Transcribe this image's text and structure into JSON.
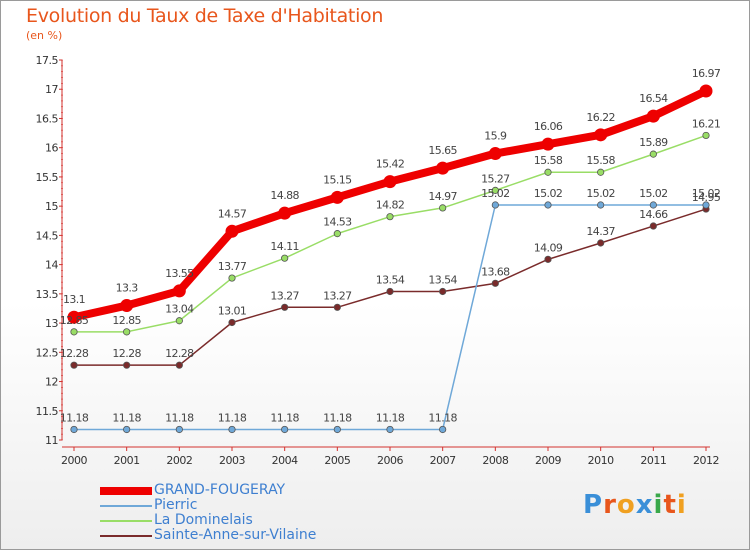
{
  "title": "Evolution du Taux de Taxe d'Habitation",
  "subtitle": "(en %)",
  "logo_text": "Proxiti",
  "chart_data": {
    "type": "line",
    "title": "Evolution du Taux de Taxe d'Habitation",
    "ylabel": "(en %)",
    "xlabel": "",
    "x": [
      "2000",
      "2001",
      "2002",
      "2003",
      "2004",
      "2005",
      "2006",
      "2007",
      "2008",
      "2009",
      "2010",
      "2011",
      "2012"
    ],
    "ylim": [
      11,
      17.5
    ],
    "yticks": [
      "11",
      "11.5",
      "12",
      "12.5",
      "13",
      "13.5",
      "14",
      "14.5",
      "15",
      "15.5",
      "16",
      "16.5",
      "17",
      "17.5"
    ],
    "grid": false,
    "legend_position": "bottom-left",
    "series": [
      {
        "name": "GRAND-FOUGERAY",
        "color": "#ee0000",
        "values": [
          13.1,
          13.3,
          13.55,
          14.57,
          14.88,
          15.15,
          15.42,
          15.65,
          15.9,
          16.06,
          16.22,
          16.54,
          16.97
        ],
        "labels": [
          "13.1",
          "13.3",
          "13.55",
          "14.57",
          "14.88",
          "15.15",
          "15.42",
          "15.65",
          "15.9",
          "16.06",
          "16.22",
          "16.54",
          "16.97"
        ]
      },
      {
        "name": "Pierric",
        "color": "#6fa8d8",
        "values": [
          11.18,
          11.18,
          11.18,
          11.18,
          11.18,
          11.18,
          11.18,
          11.18,
          15.02,
          15.02,
          15.02,
          15.02,
          15.02
        ],
        "labels": [
          "11.18",
          "11.18",
          "11.18",
          "11.18",
          "11.18",
          "11.18",
          "11.18",
          "11.18",
          "15.02",
          "15.02",
          "15.02",
          "15.02",
          "15.02"
        ]
      },
      {
        "name": "La Dominelais",
        "color": "#99dd66",
        "values": [
          12.85,
          12.85,
          13.04,
          13.77,
          14.11,
          14.53,
          14.82,
          14.97,
          15.27,
          15.58,
          15.58,
          15.89,
          16.21
        ],
        "labels": [
          "12.85",
          "12.85",
          "13.04",
          "13.77",
          "14.11",
          "14.53",
          "14.82",
          "14.97",
          "15.27",
          "15.58",
          "15.58",
          "15.89",
          "16.21"
        ]
      },
      {
        "name": "Sainte-Anne-sur-Vilaine",
        "color": "#7a2b2b",
        "values": [
          12.28,
          12.28,
          12.28,
          13.01,
          13.27,
          13.27,
          13.54,
          13.54,
          13.68,
          14.09,
          14.37,
          14.66,
          14.95
        ],
        "labels": [
          "12.28",
          "12.28",
          "12.28",
          "13.01",
          "13.27",
          "13.27",
          "13.54",
          "13.54",
          "13.68",
          "14.09",
          "14.37",
          "14.66",
          "14.95"
        ]
      }
    ]
  }
}
